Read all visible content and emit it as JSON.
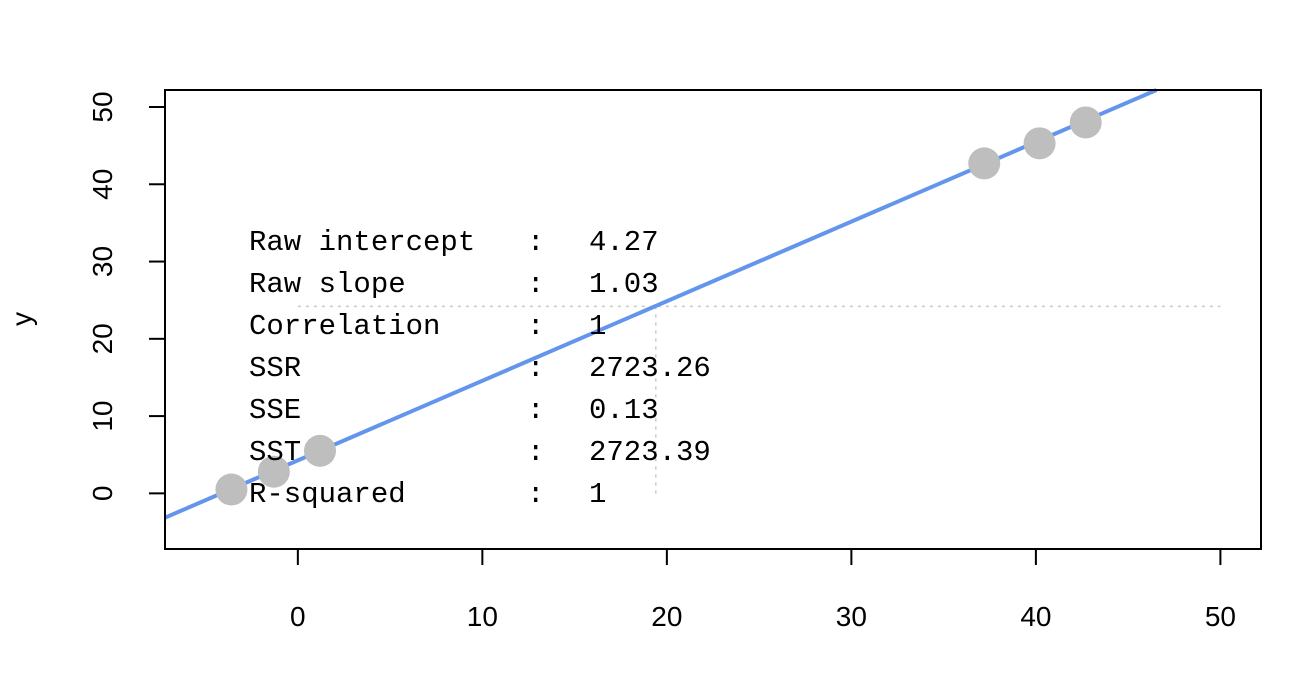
{
  "chart_data": {
    "type": "scatter",
    "title": "",
    "xlabel": "",
    "ylabel": "y",
    "xlim": [
      -7.2,
      52.2
    ],
    "ylim": [
      -7.2,
      52.2
    ],
    "x_ticks": [
      0,
      10,
      20,
      30,
      40,
      50
    ],
    "y_ticks": [
      0,
      10,
      20,
      30,
      40,
      50
    ],
    "grid": false,
    "points": [
      {
        "x": -3.6,
        "y": 0.5
      },
      {
        "x": -1.3,
        "y": 2.8
      },
      {
        "x": 1.2,
        "y": 5.5
      },
      {
        "x": 37.2,
        "y": 42.7
      },
      {
        "x": 40.2,
        "y": 45.3
      },
      {
        "x": 42.7,
        "y": 48.0
      }
    ],
    "fit_line": {
      "intercept": 4.27,
      "slope": 1.03,
      "color": "#6495ED"
    },
    "mean_guides": {
      "x_mean": 19.4,
      "y_mean": 24.2,
      "color": "#c8c8c8"
    },
    "point_color": "#bebebe",
    "stats": [
      {
        "label": "Raw intercept",
        "sep": ":",
        "value": "4.27"
      },
      {
        "label": "Raw slope    ",
        "sep": ":",
        "value": "1.03"
      },
      {
        "label": "Correlation  ",
        "sep": ":",
        "value": "1"
      },
      {
        "label": "SSR          ",
        "sep": ":",
        "value": "2723.26"
      },
      {
        "label": "SSE          ",
        "sep": ":",
        "value": "0.13"
      },
      {
        "label": "SST          ",
        "sep": ":",
        "value": "2723.39"
      },
      {
        "label": "R-squared    ",
        "sep": ":",
        "value": "1"
      }
    ]
  }
}
